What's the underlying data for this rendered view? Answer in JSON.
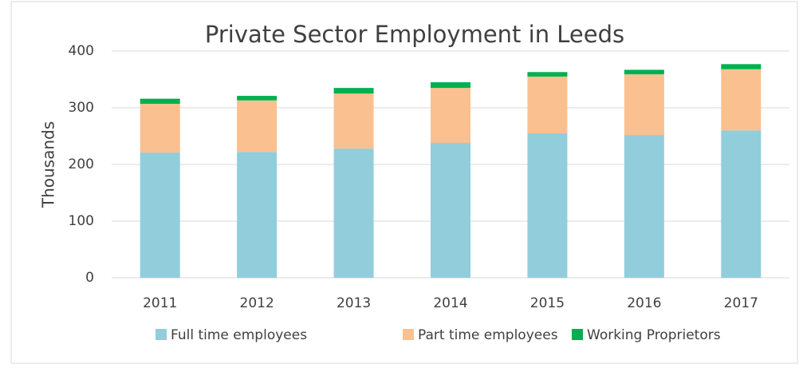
{
  "chart_data": {
    "type": "stacked_bar",
    "title": "Private Sector Employment in Leeds",
    "y_label": "Thousands",
    "categories": [
      "2011",
      "2012",
      "2013",
      "2014",
      "2015",
      "2016",
      "2017"
    ],
    "series": [
      {
        "name": "Full time employees",
        "color": "#92cddc",
        "values": [
          221,
          222,
          228,
          238,
          255,
          252,
          260
        ]
      },
      {
        "name": "Part time employees",
        "color": "#fac090",
        "values": [
          86,
          91,
          97,
          97,
          100,
          107,
          108
        ]
      },
      {
        "name": "Working Proprietors",
        "color": "#00b050",
        "values": [
          9,
          8,
          10,
          10,
          8,
          8,
          9
        ]
      }
    ],
    "ylim": [
      0,
      400
    ],
    "yticks": [
      0,
      100,
      200,
      300,
      400
    ],
    "grid": true,
    "legend": "bottom"
  }
}
